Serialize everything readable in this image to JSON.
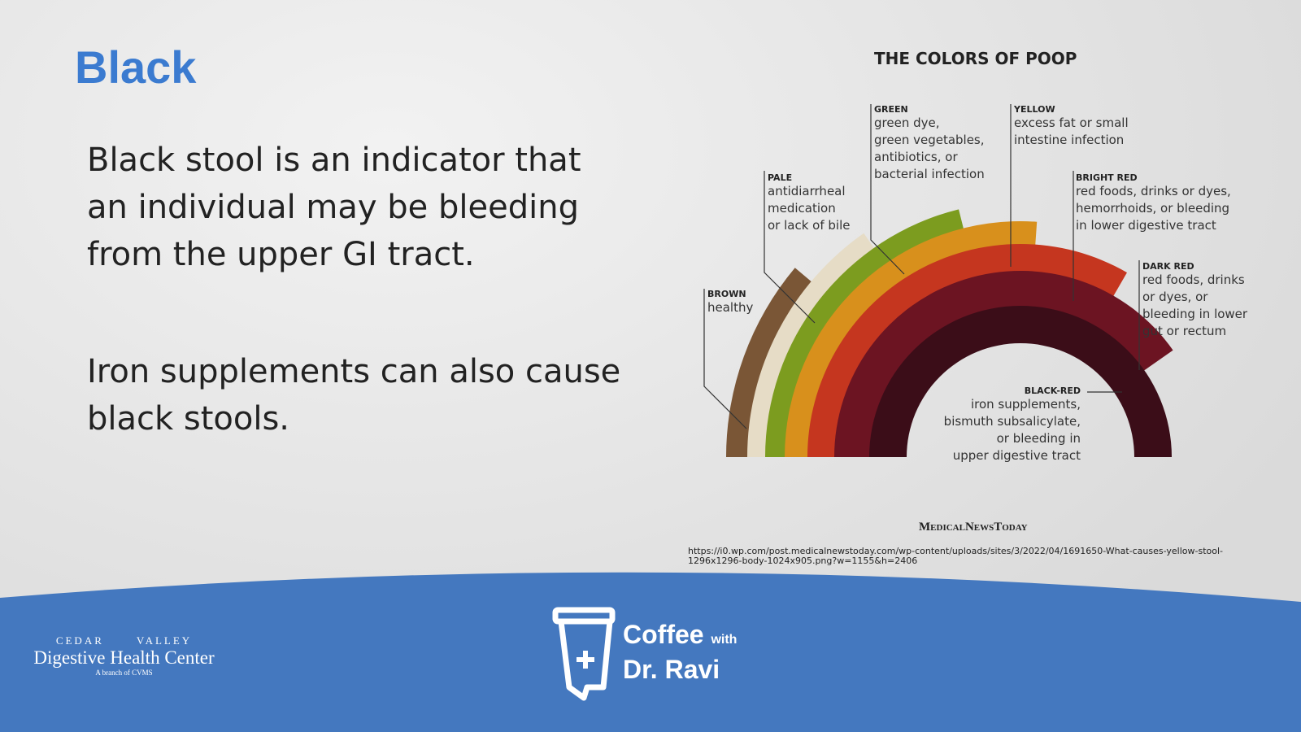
{
  "slide": {
    "title": "Black",
    "paragraphs": [
      [
        "Black stool is an indicator that",
        "an individual may be bleeding",
        "from the upper GI tract."
      ],
      [
        "Iron supplements can also cause",
        "black stools."
      ]
    ]
  },
  "infographic": {
    "title": "THE COLORS OF POOP",
    "items": [
      {
        "label": "BROWN",
        "description": [
          "healthy"
        ]
      },
      {
        "label": "PALE",
        "description": [
          "antidiarrheal",
          "medication",
          "or lack of bile"
        ]
      },
      {
        "label": "GREEN",
        "description": [
          "green dye,",
          "green vegetables,",
          "antibiotics, or",
          "bacterial infection"
        ]
      },
      {
        "label": "YELLOW",
        "description": [
          "excess fat or small",
          "intestine infection"
        ]
      },
      {
        "label": "BRIGHT RED",
        "description": [
          "red foods, drinks or dyes,",
          "hemorrhoids, or bleeding",
          "in lower digestive tract"
        ]
      },
      {
        "label": "DARK RED",
        "description": [
          "red foods, drinks",
          "or dyes, or",
          "bleeding in lower",
          "gut or rectum"
        ]
      },
      {
        "label": "BLACK-RED",
        "description": [
          "iron supplements,",
          "bismuth subsalicylate,",
          "or bleeding in",
          "upper digestive tract"
        ]
      }
    ],
    "source": "MedicalNewsToday",
    "url": [
      "https://i0.wp.com/post.medicalnewstoday.com/wp-content/uploads/sites/3/2022/04/1691650-What-causes-yellow-stool-",
      "1296x1296-body-1024x905.png?w=1155&h=2406"
    ]
  },
  "footer": {
    "logo": {
      "left": "CEDAR",
      "right": "VALLEY",
      "name": "Digestive Health Center",
      "tagline": "A branch of CVMS"
    },
    "show": {
      "line1": "Coffee",
      "with": "with",
      "line2": "Dr. Ravi"
    }
  }
}
